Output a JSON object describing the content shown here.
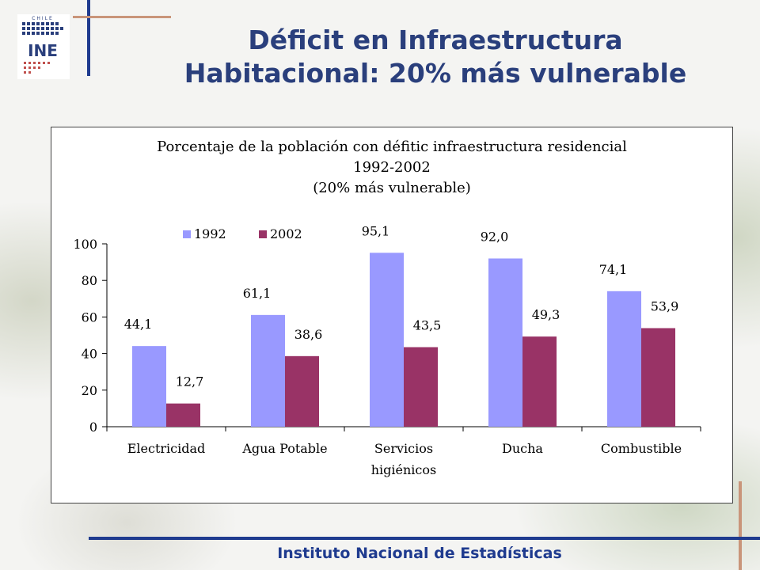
{
  "slide": {
    "title_line1": "Déficit en Infraestructura",
    "title_line2": "Habitacional: 20% más vulnerable",
    "footer": "Instituto Nacional de Estadísticas"
  },
  "logo": {
    "text": "INE",
    "arc_text": "CHILE"
  },
  "colors": {
    "title": "#2a3f7c",
    "accent_blue": "#1f3b8f",
    "accent_tan": "#c9957a"
  },
  "chart_data": {
    "type": "bar",
    "title_lines": [
      "Porcentaje de la población con défitic infraestructura residencial",
      "1992-2002",
      "(20% más vulnerable)"
    ],
    "categories": [
      [
        "Electricidad"
      ],
      [
        "Agua Potable"
      ],
      [
        "Servicios",
        "higiénicos"
      ],
      [
        "Ducha"
      ],
      [
        "Combustible"
      ]
    ],
    "series": [
      {
        "name": "1992",
        "color": "#9999ff",
        "values": [
          44.1,
          61.1,
          95.1,
          92.0,
          74.1
        ],
        "labels": [
          "44,1",
          "61,1",
          "95,1",
          "92,0",
          "74,1"
        ]
      },
      {
        "name": "2002",
        "color": "#993366",
        "values": [
          12.7,
          38.6,
          43.5,
          49.3,
          53.9
        ],
        "labels": [
          "12,7",
          "38,6",
          "43,5",
          "49,3",
          "53,9"
        ]
      }
    ],
    "ylim": [
      0,
      100
    ],
    "yticks": [
      0,
      20,
      40,
      60,
      80,
      100
    ],
    "grid": false,
    "legend": "top"
  }
}
